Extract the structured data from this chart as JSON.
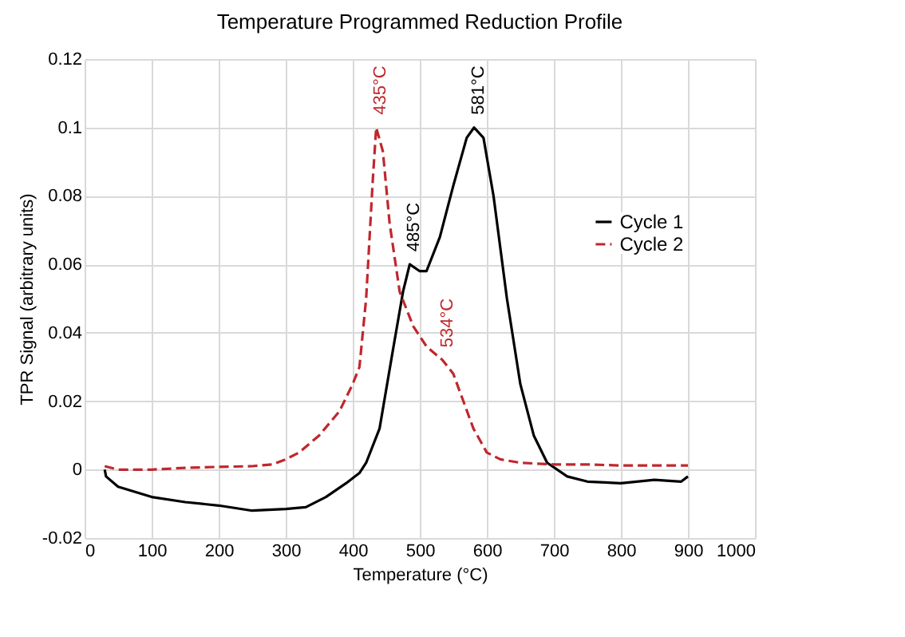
{
  "chart_data": {
    "type": "line",
    "title": "Temperature Programmed Reduction Profile",
    "xlabel": "Temperature (°C)",
    "ylabel": "TPR Signal (arbitrary units)",
    "xlim": [
      0,
      1000
    ],
    "xticks": [
      0,
      100,
      200,
      300,
      400,
      500,
      600,
      700,
      800,
      900,
      1000
    ],
    "ylim": [
      -0.02,
      0.12
    ],
    "yticks": [
      -0.02,
      0,
      0.02,
      0.04,
      0.06,
      0.08,
      0.1,
      0.12
    ],
    "grid": true,
    "legend": "right",
    "series": [
      {
        "name": "Cycle 1",
        "color": "#000000",
        "line_style": "solid",
        "x": [
          30,
          32,
          50,
          100,
          150,
          200,
          250,
          300,
          330,
          360,
          390,
          410,
          420,
          440,
          460,
          475,
          485,
          500,
          510,
          530,
          550,
          570,
          581,
          595,
          610,
          630,
          650,
          670,
          690,
          720,
          750,
          800,
          850,
          890,
          900
        ],
        "values": [
          0,
          -0.002,
          -0.005,
          -0.008,
          -0.0095,
          -0.0105,
          -0.012,
          -0.0115,
          -0.011,
          -0.008,
          -0.004,
          -0.001,
          0.002,
          0.012,
          0.035,
          0.052,
          0.06,
          0.058,
          0.058,
          0.068,
          0.083,
          0.097,
          0.1,
          0.097,
          0.08,
          0.05,
          0.025,
          0.01,
          0.002,
          -0.002,
          -0.0035,
          -0.004,
          -0.003,
          -0.0035,
          -0.002
        ]
      },
      {
        "name": "Cycle 2",
        "color": "#c0272d",
        "line_style": "dashed",
        "x": [
          30,
          50,
          100,
          150,
          200,
          250,
          280,
          300,
          320,
          350,
          380,
          400,
          410,
          420,
          430,
          435,
          445,
          455,
          470,
          490,
          510,
          534,
          550,
          565,
          580,
          600,
          620,
          650,
          700,
          750,
          800,
          900
        ],
        "values": [
          0.001,
          0,
          0,
          0.0005,
          0.0008,
          0.001,
          0.0015,
          0.003,
          0.005,
          0.01,
          0.017,
          0.025,
          0.03,
          0.05,
          0.085,
          0.1,
          0.093,
          0.072,
          0.052,
          0.042,
          0.036,
          0.032,
          0.028,
          0.02,
          0.012,
          0.005,
          0.003,
          0.002,
          0.0015,
          0.0015,
          0.0012,
          0.0012
        ]
      }
    ],
    "annotations": [
      {
        "text": "435°C",
        "x": 435,
        "y": 0.1
      },
      {
        "text": "581°C",
        "x": 581,
        "y": 0.1
      },
      {
        "text": "485°C",
        "x": 485,
        "y": 0.06
      },
      {
        "text": "534°C",
        "x": 534,
        "y": 0.032
      }
    ]
  }
}
